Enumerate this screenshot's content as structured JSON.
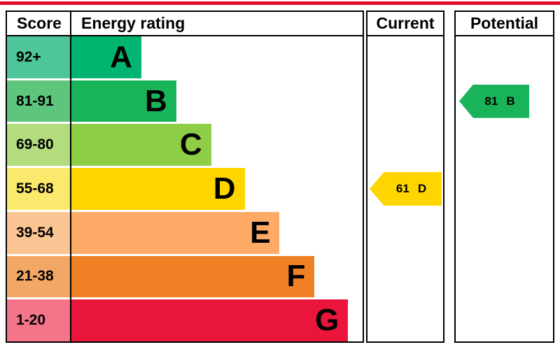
{
  "page": {
    "top_accent_color": "#e30b2d"
  },
  "header": {
    "score": "Score",
    "rating": "Energy rating",
    "current": "Current",
    "potential": "Potential"
  },
  "chart_data": {
    "type": "bar",
    "chart_kind": "epc-energy-efficiency-rating",
    "title": "Energy rating",
    "columns": [
      "Score",
      "Energy rating",
      "Current",
      "Potential"
    ],
    "categories": [
      "92+",
      "81-91",
      "69-80",
      "55-68",
      "39-54",
      "21-38",
      "1-20"
    ],
    "letters": [
      "A",
      "B",
      "C",
      "D",
      "E",
      "F",
      "G"
    ],
    "bands": [
      {
        "score": "92+",
        "letter": "A",
        "bar_color": "#00b570",
        "score_color": "#4ec69a",
        "width_pct": 24
      },
      {
        "score": "81-91",
        "letter": "B",
        "bar_color": "#19b459",
        "score_color": "#5ec57d",
        "width_pct": 36
      },
      {
        "score": "69-80",
        "letter": "C",
        "bar_color": "#8dce46",
        "score_color": "#b2dc7e",
        "width_pct": 48
      },
      {
        "score": "55-68",
        "letter": "D",
        "bar_color": "#ffd500",
        "score_color": "#fbe96e",
        "width_pct": 59.5
      },
      {
        "score": "39-54",
        "letter": "E",
        "bar_color": "#fcaa65",
        "score_color": "#fbc593",
        "width_pct": 71.5
      },
      {
        "score": "21-38",
        "letter": "F",
        "bar_color": "#ef8023",
        "score_color": "#f3a765",
        "width_pct": 83.5
      },
      {
        "score": "1-20",
        "letter": "G",
        "bar_color": "#e9153b",
        "score_color": "#f4758a",
        "width_pct": 95
      }
    ],
    "current": {
      "value": 61,
      "letter": "D",
      "band_index": 3,
      "color": "#ffd500"
    },
    "potential": {
      "value": 81,
      "letter": "B",
      "band_index": 1,
      "color": "#19b459"
    }
  }
}
